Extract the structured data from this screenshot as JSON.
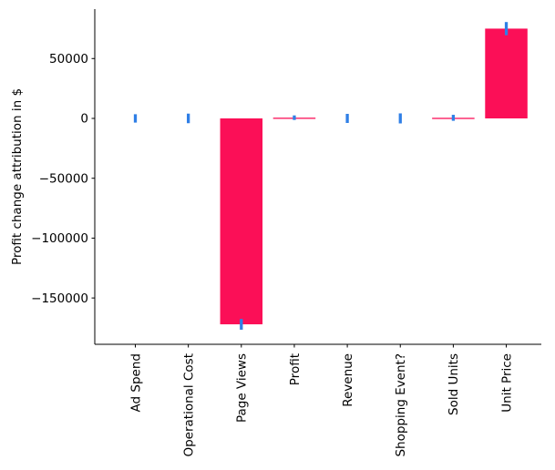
{
  "chart_data": {
    "type": "bar",
    "ylabel": "Profit change attribution in $",
    "categories": [
      "Ad Spend",
      "Operational Cost",
      "Page Views",
      "Profit",
      "Revenue",
      "Shopping Event?",
      "Sold Units",
      "Unit Price"
    ],
    "values": [
      0,
      0,
      -172000,
      600,
      0,
      0,
      500,
      75000
    ],
    "error_bars": [
      3500,
      4000,
      4500,
      1900,
      3800,
      4200,
      2500,
      5500
    ],
    "ylim": [
      -188700,
      91300
    ],
    "yticks": [
      50000,
      0,
      -50000,
      -100000,
      -150000
    ],
    "ytick_labels": [
      "50000",
      "0",
      "−50000",
      "−100000",
      "−150000"
    ],
    "x_tick_rotation": 90,
    "grid": false,
    "legend": "none",
    "colors": {
      "bar": "#fb0f57",
      "error": "#2f7fe6",
      "axis": "#000000",
      "text": "#000000",
      "background": "#ffffff"
    }
  }
}
